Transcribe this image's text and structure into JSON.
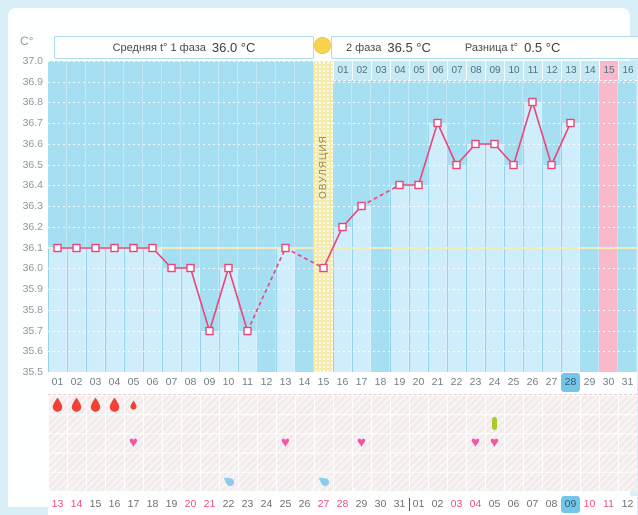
{
  "header": {
    "unit_label": "C°",
    "phase1_label": "Средняя t° 1 фаза",
    "phase1_value": "36.0 °C",
    "phase2_label": "2 фаза",
    "phase2_value": "36.5 °C",
    "diff_label": "Разница t°",
    "diff_value": "0.5 °C"
  },
  "chart_data": {
    "type": "line",
    "title": "Basal body temperature cycle chart",
    "ylabel": "C°",
    "ylim": [
      35.5,
      37.0
    ],
    "y_ticks": [
      "37.0",
      "36.9",
      "36.8",
      "36.7",
      "36.6",
      "36.5",
      "36.4",
      "36.3",
      "36.2",
      "36.1",
      "36.0",
      "35.9",
      "35.8",
      "35.7",
      "35.6",
      "35.5"
    ],
    "grid": "dotted-horizontal",
    "legend_position": "none",
    "cycle_days": [
      "01",
      "02",
      "03",
      "04",
      "05",
      "06",
      "07",
      "08",
      "09",
      "10",
      "11",
      "12",
      "13",
      "14",
      "15",
      "16",
      "17",
      "18",
      "19",
      "20",
      "21",
      "22",
      "23",
      "24",
      "25",
      "26",
      "27",
      "28",
      "29",
      "30",
      "31"
    ],
    "temps_by_day": [
      36.1,
      36.1,
      36.1,
      36.1,
      36.1,
      36.1,
      36.0,
      36.0,
      35.7,
      36.0,
      35.7,
      null,
      36.1,
      null,
      36.0,
      36.2,
      36.3,
      null,
      36.4,
      36.4,
      36.7,
      36.5,
      36.6,
      36.6,
      36.5,
      36.8,
      36.5,
      36.7,
      null,
      null,
      null
    ],
    "coverline": 36.1,
    "ovulation_day": 15,
    "ovulation_label": "ОВУЛЯЦИЯ",
    "phase2_day_labels": [
      "01",
      "02",
      "03",
      "04",
      "05",
      "06",
      "07",
      "08",
      "09",
      "10",
      "11",
      "12",
      "13",
      "14",
      "15",
      "16"
    ],
    "phase2_highlighted_label": "15",
    "expected_period_day": 30,
    "today_cycle_day": 28
  },
  "events": {
    "menstruation": [
      {
        "day": 1,
        "size": "large"
      },
      {
        "day": 2,
        "size": "large"
      },
      {
        "day": 3,
        "size": "large"
      },
      {
        "day": 4,
        "size": "large"
      },
      {
        "day": 5,
        "size": "small"
      }
    ],
    "pill_or_test": [
      {
        "day": 24
      }
    ],
    "intercourse_days": [
      5,
      13,
      17,
      23,
      24
    ],
    "cervical_fluid_days": [
      10,
      15
    ]
  },
  "calendar": {
    "dates": [
      "13",
      "14",
      "15",
      "16",
      "17",
      "18",
      "19",
      "20",
      "21",
      "22",
      "23",
      "24",
      "25",
      "26",
      "27",
      "28",
      "29",
      "30",
      "31",
      "01",
      "02",
      "03",
      "04",
      "05",
      "06",
      "07",
      "08",
      "09",
      "10",
      "11",
      "12"
    ],
    "weekend_columns": [
      1,
      2,
      8,
      9,
      15,
      16,
      22,
      23,
      29,
      30
    ],
    "today_column": 28,
    "month_separator_after_column": 19
  },
  "colors": {
    "accent_line": "#e8467b",
    "chart_bg": "#a6def2",
    "measured_column": "#cfedfa",
    "ovulation_column": "#f6eaa8",
    "expected_period_column": "#f8bacb",
    "coverline": "#f0edbe",
    "today_bg": "#72c6ea",
    "weekend_text": "#ed4d87",
    "menstruation": "#f04237",
    "intercourse": "#f455a4",
    "cervical_fluid": "#8bcbee",
    "pill": "#a8cb2d",
    "ovulation_circle": "#f8d34c"
  }
}
